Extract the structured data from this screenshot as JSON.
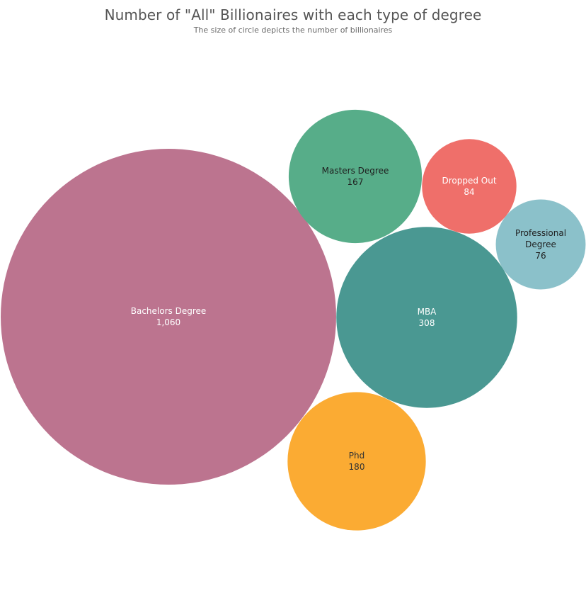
{
  "chart_data": {
    "type": "packed-bubble",
    "title": "Number of \"All\" Billionaires with each type of degree",
    "subtitle": "The size of circle depicts the number of billionaires",
    "series": [
      {
        "name": "Bachelors Degree",
        "label_lines": [
          "Bachelors Degree"
        ],
        "value": 1060,
        "value_label": "1,060",
        "color": "#bc748f",
        "text_color": "#ffffff"
      },
      {
        "name": "MBA",
        "label_lines": [
          "MBA"
        ],
        "value": 308,
        "value_label": "308",
        "color": "#4a9892",
        "text_color": "#ffffff"
      },
      {
        "name": "Phd",
        "label_lines": [
          "Phd"
        ],
        "value": 180,
        "value_label": "180",
        "color": "#fbab33",
        "text_color": "#333333"
      },
      {
        "name": "Masters Degree",
        "label_lines": [
          "Masters Degree"
        ],
        "value": 167,
        "value_label": "167",
        "color": "#57ad89",
        "text_color": "#1e1e1e"
      },
      {
        "name": "Dropped Out",
        "label_lines": [
          "Dropped Out"
        ],
        "value": 84,
        "value_label": "84",
        "color": "#ef6f6a",
        "text_color": "#ffffff"
      },
      {
        "name": "Professional Degree",
        "label_lines": [
          "Professional",
          "Degree"
        ],
        "value": 76,
        "value_label": "76",
        "color": "#8bc1ca",
        "text_color": "#1e1e1e"
      }
    ]
  }
}
